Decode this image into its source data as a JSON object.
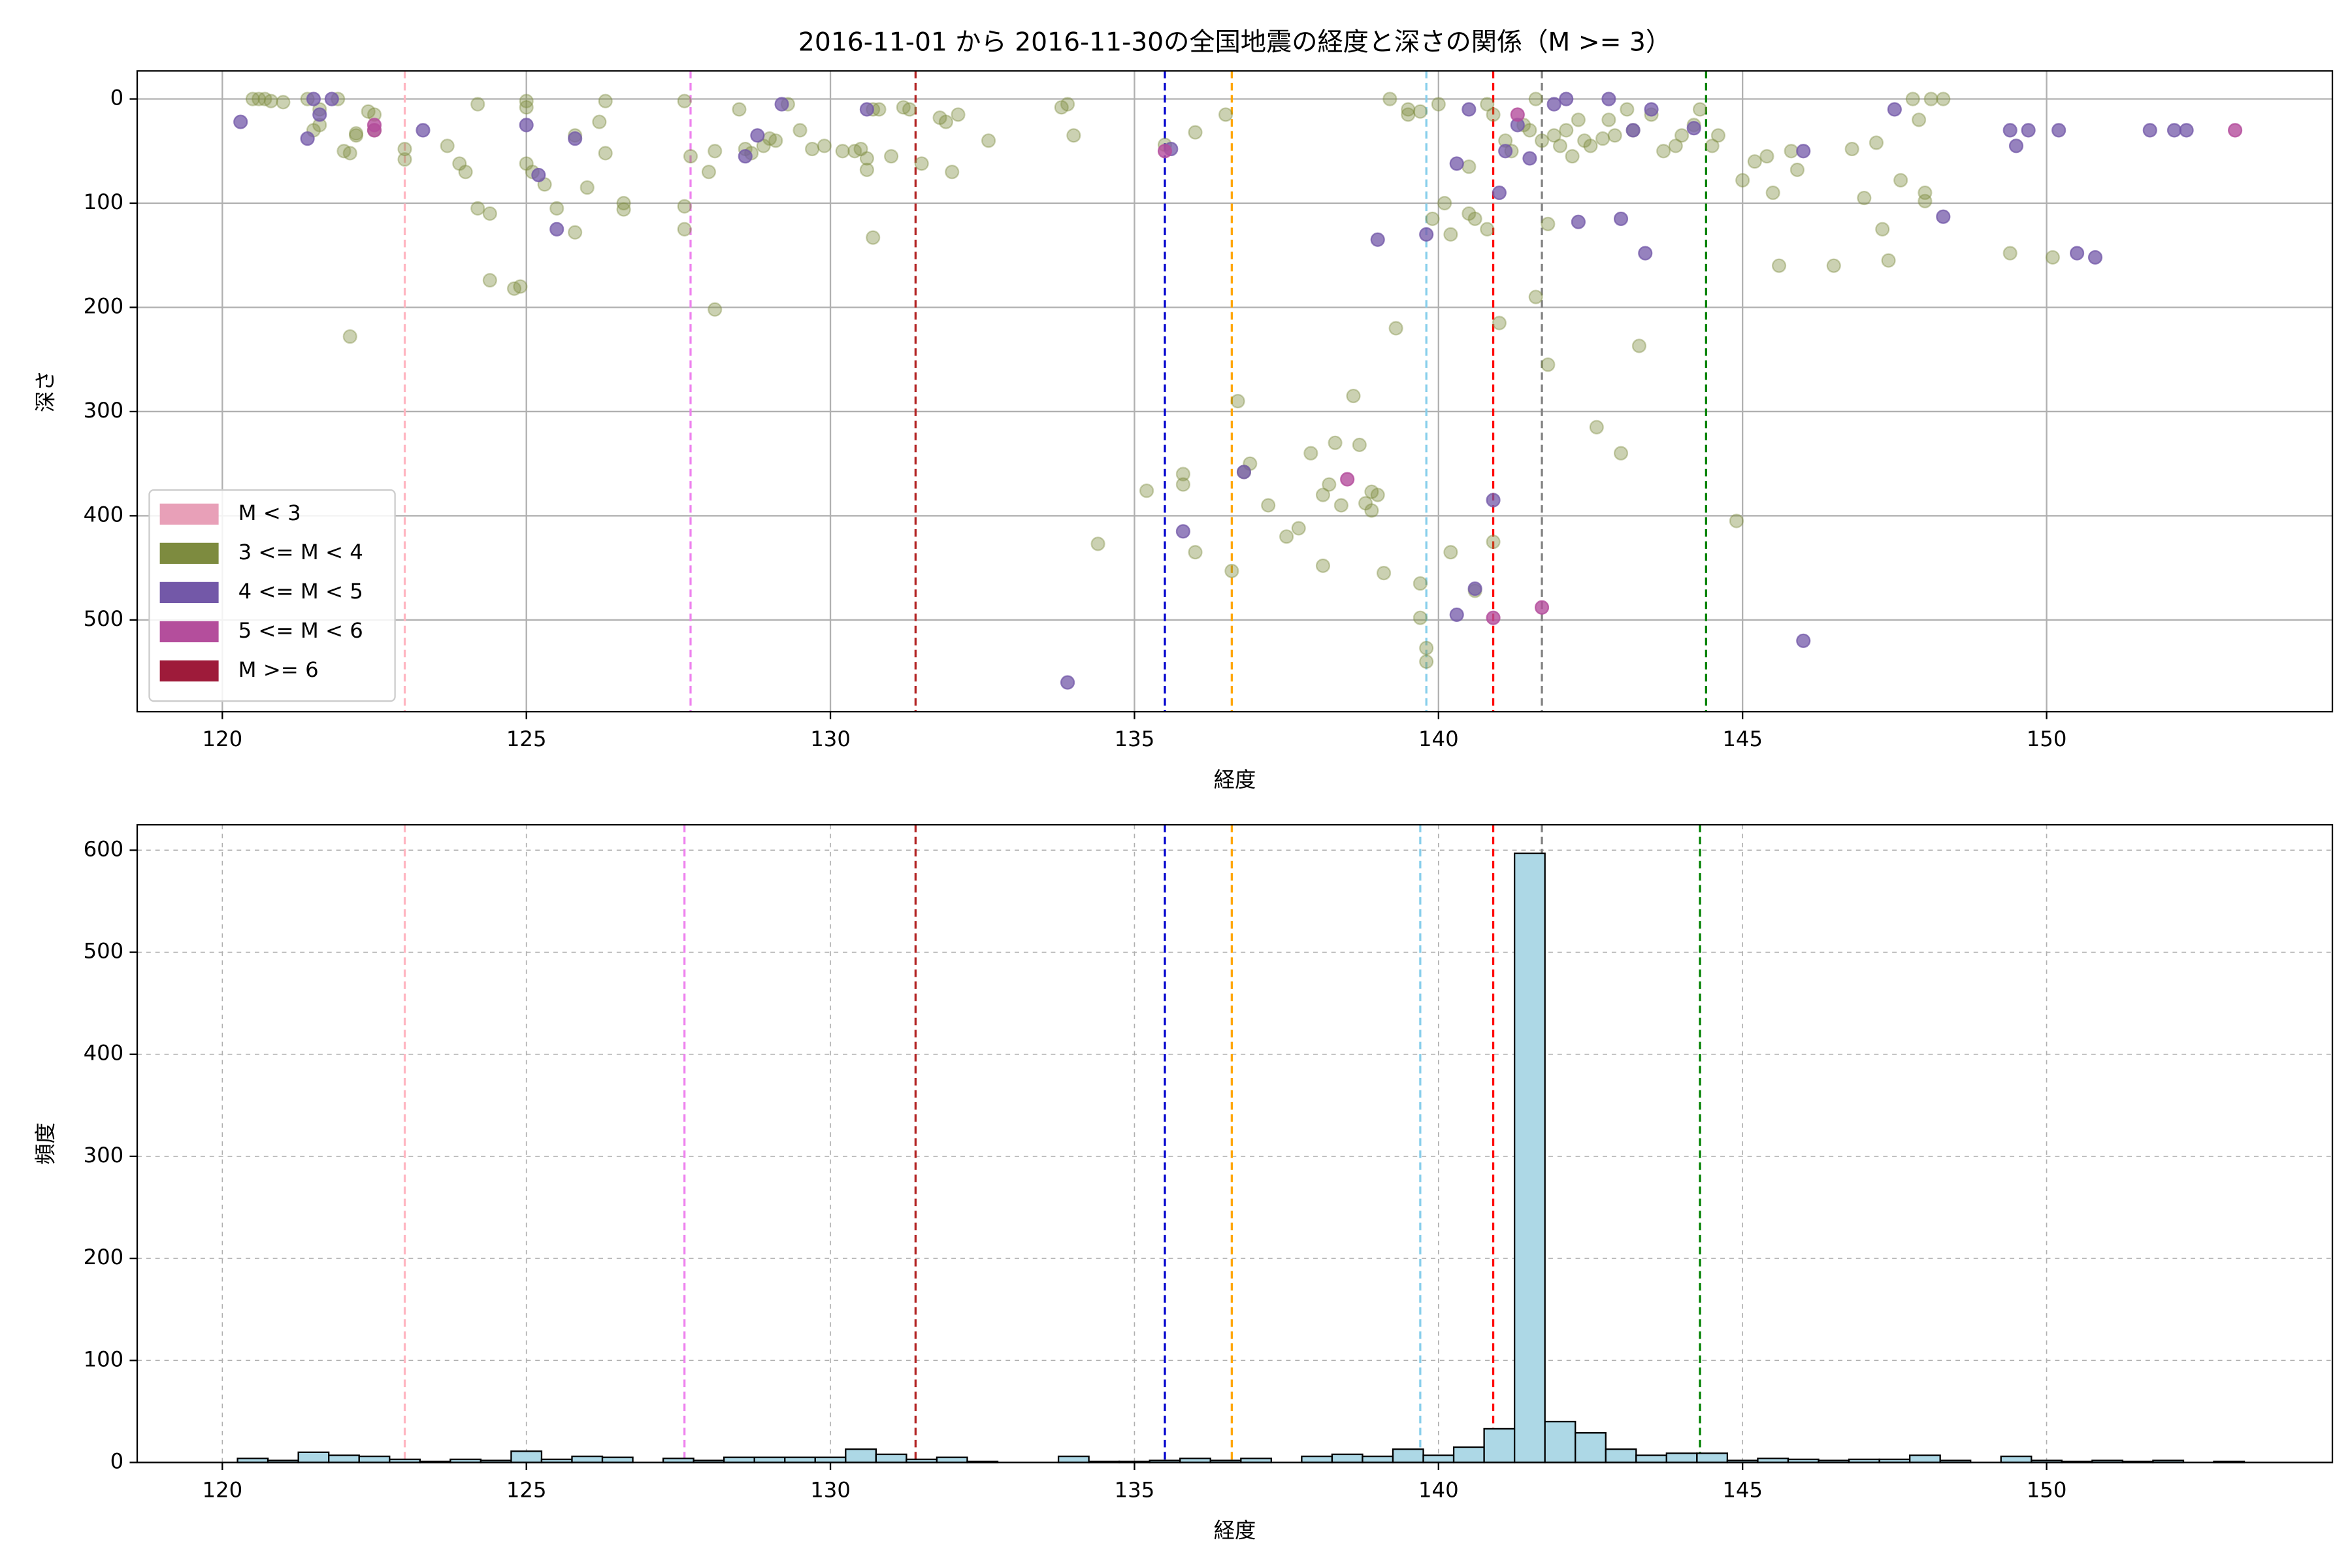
{
  "chart_data": [
    {
      "type": "scatter",
      "title": "2016-11-01 から 2016-11-30の全国地震の経度と深さの関係（M >= 3）",
      "xlabel": "経度",
      "ylabel": "深さ",
      "xlim": [
        118.6,
        154.7
      ],
      "ylim": [
        588,
        -27
      ],
      "xticks": [
        120,
        125,
        130,
        135,
        140,
        145,
        150
      ],
      "yticks": [
        0,
        100,
        200,
        300,
        400,
        500
      ],
      "grid": true,
      "grid_style": "solid",
      "legend": "lower left",
      "vlines": [
        {
          "x": 123.0,
          "color": "#ffb6c1"
        },
        {
          "x": 127.7,
          "color": "#ee82ee"
        },
        {
          "x": 131.4,
          "color": "#b22222"
        },
        {
          "x": 135.5,
          "color": "#0000cd"
        },
        {
          "x": 136.6,
          "color": "#ffa500"
        },
        {
          "x": 139.8,
          "color": "#87ceeb"
        },
        {
          "x": 140.9,
          "color": "#ff0000"
        },
        {
          "x": 141.7,
          "color": "#808080"
        },
        {
          "x": 144.4,
          "color": "#008000"
        }
      ],
      "series": [
        {
          "name": "M < 3",
          "color": "#e8a0b8",
          "opacity": 0.7,
          "x": [],
          "y": []
        },
        {
          "name": "3 <= M < 4",
          "color": "#7d8b3f",
          "opacity": 0.4,
          "x": [
            120.5,
            120.7,
            120.8,
            121.0,
            120.6,
            121.4,
            121.5,
            121.6,
            121.6,
            121.9,
            122.0,
            122.1,
            122.2,
            122.2,
            122.4,
            122.5,
            122.5,
            122.1,
            123.0,
            123.0,
            123.7,
            123.9,
            124.0,
            124.2,
            124.2,
            124.4,
            124.4,
            124.9,
            124.8,
            125.0,
            125.0,
            125.0,
            125.1,
            125.3,
            125.5,
            125.8,
            125.8,
            126.0,
            126.3,
            126.3,
            126.2,
            126.6,
            126.6,
            127.6,
            127.7,
            127.6,
            127.6,
            128.0,
            128.1,
            128.1,
            128.5,
            128.6,
            128.7,
            128.9,
            129.0,
            129.1,
            129.3,
            129.5,
            129.7,
            129.9,
            130.2,
            130.4,
            130.5,
            130.6,
            130.6,
            130.7,
            130.8,
            130.7,
            131.0,
            131.2,
            131.3,
            131.5,
            131.8,
            131.9,
            132.0,
            132.1,
            132.6,
            133.8,
            133.9,
            134.0,
            134.4,
            135.2,
            135.5,
            135.8,
            135.8,
            136.0,
            136.0,
            136.5,
            136.6,
            136.7,
            136.9,
            136.8,
            137.2,
            137.5,
            137.7,
            137.9,
            138.1,
            138.2,
            138.1,
            138.3,
            138.4,
            138.6,
            138.7,
            138.8,
            138.9,
            138.9,
            139.0,
            139.1,
            139.2,
            139.3,
            139.5,
            139.5,
            139.7,
            139.7,
            139.7,
            139.8,
            139.8,
            139.9,
            140.0,
            140.1,
            140.2,
            140.2,
            140.5,
            140.5,
            140.6,
            140.6,
            140.8,
            140.8,
            140.9,
            140.9,
            141.0,
            141.1,
            141.2,
            141.4,
            141.6,
            141.6,
            141.8,
            141.8,
            141.5,
            141.7,
            141.9,
            142.0,
            142.1,
            142.2,
            142.3,
            142.4,
            142.5,
            142.6,
            142.7,
            142.8,
            142.9,
            143.0,
            143.1,
            143.2,
            143.3,
            143.5,
            143.7,
            143.9,
            144.0,
            144.2,
            144.3,
            144.5,
            144.6,
            144.9,
            145.0,
            145.2,
            145.4,
            145.5,
            145.6,
            145.8,
            145.9,
            146.5,
            146.8,
            147.0,
            147.2,
            147.3,
            147.4,
            147.6,
            147.8,
            147.9,
            148.0,
            148.0,
            148.1,
            148.3,
            149.4,
            150.1
          ],
          "y": [
            0,
            0,
            2,
            3,
            0,
            0,
            30,
            10,
            25,
            0,
            50,
            52,
            33,
            35,
            12,
            30,
            15,
            228,
            58,
            48,
            45,
            62,
            70,
            5,
            105,
            110,
            174,
            180,
            182,
            2,
            8,
            62,
            70,
            82,
            105,
            35,
            128,
            85,
            52,
            2,
            22,
            100,
            106,
            2,
            55,
            103,
            125,
            70,
            50,
            202,
            10,
            48,
            52,
            45,
            38,
            40,
            5,
            30,
            48,
            45,
            50,
            50,
            48,
            57,
            68,
            10,
            10,
            133,
            55,
            8,
            10,
            62,
            18,
            22,
            70,
            15,
            40,
            8,
            5,
            35,
            427,
            376,
            44,
            360,
            370,
            32,
            435,
            15,
            453,
            290,
            350,
            358,
            390,
            420,
            412,
            340,
            448,
            370,
            380,
            330,
            390,
            285,
            332,
            388,
            395,
            377,
            380,
            455,
            0,
            220,
            10,
            15,
            12,
            465,
            498,
            527,
            540,
            115,
            5,
            100,
            130,
            435,
            65,
            110,
            115,
            472,
            5,
            125,
            15,
            425,
            215,
            40,
            50,
            25,
            0,
            190,
            120,
            255,
            30,
            40,
            35,
            45,
            30,
            55,
            20,
            40,
            45,
            315,
            38,
            20,
            35,
            340,
            10,
            30,
            237,
            15,
            50,
            45,
            35,
            25,
            10,
            45,
            35,
            405,
            78,
            60,
            55,
            90,
            160,
            50,
            68,
            160,
            48,
            95,
            42,
            125,
            155,
            78,
            0,
            20,
            90,
            98,
            0,
            0,
            148,
            152
          ]
        },
        {
          "name": "4 <= M < 5",
          "color": "#7358a8",
          "opacity": 0.75,
          "x": [
            120.3,
            121.4,
            121.5,
            121.6,
            121.8,
            123.3,
            125.0,
            125.2,
            125.5,
            125.8,
            128.6,
            128.8,
            129.2,
            130.6,
            133.9,
            135.6,
            135.8,
            136.8,
            139.0,
            139.8,
            140.3,
            140.3,
            140.6,
            140.9,
            141.0,
            140.5,
            141.1,
            141.3,
            141.5,
            141.9,
            142.1,
            142.3,
            142.8,
            143.0,
            143.2,
            143.4,
            143.5,
            144.2,
            146.0,
            146.0,
            147.5,
            148.3,
            149.4,
            149.5,
            149.7,
            150.2,
            150.5,
            150.8,
            151.7,
            152.1,
            152.3
          ],
          "y": [
            22,
            38,
            0,
            15,
            0,
            30,
            25,
            73,
            125,
            38,
            55,
            35,
            5,
            10,
            560,
            48,
            415,
            358,
            135,
            130,
            62,
            495,
            470,
            385,
            90,
            10,
            50,
            25,
            57,
            5,
            0,
            118,
            0,
            115,
            30,
            148,
            10,
            28,
            520,
            50,
            10,
            113,
            30,
            45,
            30,
            30,
            148,
            152,
            30,
            30,
            30
          ]
        },
        {
          "name": "5 <= M < 6",
          "color": "#b44e9c",
          "opacity": 0.8,
          "x": [
            122.5,
            122.5,
            135.5,
            138.5,
            140.9,
            141.7,
            141.3,
            153.1
          ],
          "y": [
            25,
            30,
            50,
            365,
            498,
            488,
            15,
            30
          ]
        },
        {
          "name": "M >= 6",
          "color": "#9e1b3a",
          "opacity": 0.8,
          "x": [],
          "y": []
        }
      ]
    },
    {
      "type": "histogram",
      "xlabel": "経度",
      "ylabel": "頻度",
      "xlim": [
        118.6,
        154.7
      ],
      "ylim": [
        0,
        625
      ],
      "xticks": [
        120,
        125,
        130,
        135,
        140,
        145,
        150
      ],
      "yticks": [
        0,
        100,
        200,
        300,
        400,
        500,
        600
      ],
      "grid": true,
      "grid_style": "dashed",
      "color": "#add8e6",
      "edgecolor": "#000000",
      "vlines": [
        {
          "x": 123.0,
          "color": "#ffb6c1"
        },
        {
          "x": 127.6,
          "color": "#ee82ee"
        },
        {
          "x": 131.4,
          "color": "#b22222"
        },
        {
          "x": 135.5,
          "color": "#0000cd"
        },
        {
          "x": 136.6,
          "color": "#ffa500"
        },
        {
          "x": 139.7,
          "color": "#87ceeb"
        },
        {
          "x": 140.9,
          "color": "#ff0000"
        },
        {
          "x": 141.7,
          "color": "#808080"
        },
        {
          "x": 144.3,
          "color": "#008000"
        }
      ],
      "bins": [
        120.25,
        120.75,
        121.25,
        121.75,
        122.25,
        122.75,
        123.25,
        123.75,
        124.25,
        124.75,
        125.25,
        125.75,
        126.25,
        126.75,
        127.25,
        127.75,
        128.25,
        128.75,
        129.25,
        129.75,
        130.25,
        130.75,
        131.25,
        131.75,
        132.25,
        132.75,
        133.25,
        133.75,
        134.25,
        134.75,
        135.25,
        135.75,
        136.25,
        136.75,
        137.25,
        137.75,
        138.25,
        138.75,
        139.25,
        139.75,
        140.25,
        140.75,
        141.25,
        141.75,
        142.25,
        142.75,
        143.25,
        143.75,
        144.25,
        144.75,
        145.25,
        145.75,
        146.25,
        146.75,
        147.25,
        147.75,
        148.25,
        148.75,
        149.25,
        149.75,
        150.25,
        150.75,
        151.25,
        151.75,
        152.25,
        152.75,
        153.25
      ],
      "values": [
        4,
        2,
        10,
        7,
        6,
        3,
        1,
        3,
        2,
        11,
        3,
        6,
        5,
        0,
        4,
        2,
        5,
        5,
        5,
        5,
        13,
        8,
        3,
        5,
        1,
        0,
        0,
        6,
        1,
        1,
        2,
        4,
        2,
        4,
        0,
        6,
        8,
        6,
        13,
        7,
        15,
        33,
        597,
        40,
        29,
        13,
        7,
        9,
        9,
        2,
        4,
        3,
        2,
        3,
        3,
        7,
        2,
        0,
        6,
        2,
        1,
        2,
        1,
        2,
        0,
        1
      ]
    }
  ]
}
